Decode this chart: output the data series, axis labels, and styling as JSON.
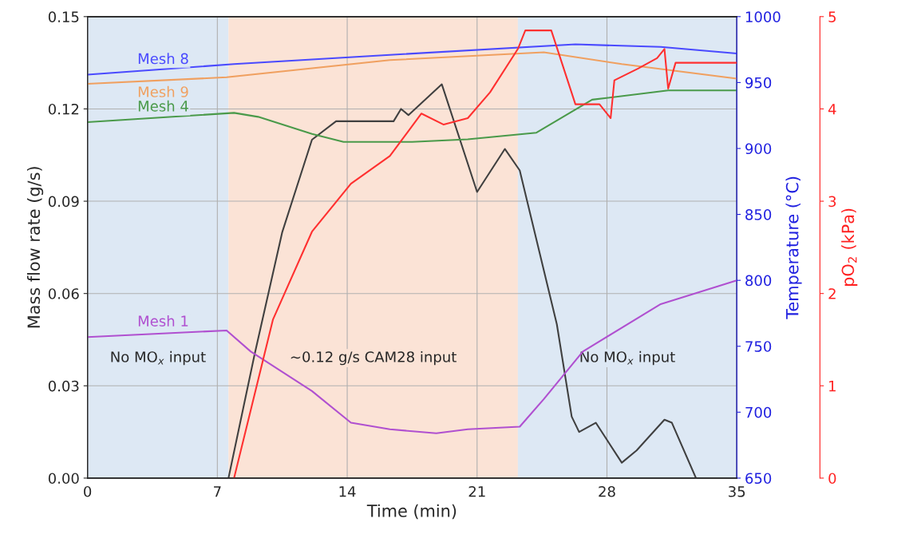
{
  "chart_data": {
    "type": "line",
    "xlabel": "Time (min)",
    "ylabel": "Mass flow rate (g/s)",
    "y2label": "Temperature (°C)",
    "y3label": "pO$_{2}$ (kPa)",
    "xlim": [
      0,
      35
    ],
    "xticks": [
      0,
      7,
      14,
      21,
      28,
      35
    ],
    "ylim": [
      0,
      0.15
    ],
    "yticks": [
      {
        "value": 0,
        "label": "0.00"
      },
      0.03,
      0.06,
      0.09,
      0.12,
      0.15
    ],
    "y2lim": [
      650,
      1000
    ],
    "y2ticks": [
      650,
      700,
      750,
      800,
      850,
      900,
      950,
      1000
    ],
    "y3lim": [
      0,
      5
    ],
    "y3ticks": [
      0,
      1,
      2,
      3,
      4,
      5
    ],
    "grid": true,
    "legend": false,
    "bands": [
      {
        "axis": "x",
        "from": 0,
        "to": 7.6,
        "label": "No MO$_{x}$ input",
        "color": "#dde8f4"
      },
      {
        "axis": "x",
        "from": 7.6,
        "to": 23.2,
        "label": "~0.12 g/s CAM28 input",
        "color": "#fbe3d6"
      },
      {
        "axis": "x",
        "from": 23.2,
        "to": 35,
        "label": "No MO$_{x}$ input",
        "color": "#dde8f4"
      }
    ],
    "series": [
      {
        "name": "Mesh 8",
        "color": "#4a4aff",
        "axis": "y2",
        "x": [
          0,
          7.9,
          16.3,
          26.3,
          30.9,
          35
        ],
        "values": [
          956,
          964,
          971,
          979,
          977,
          972
        ]
      },
      {
        "name": "Mesh 9",
        "color": "#f0a060",
        "axis": "y2",
        "x": [
          0,
          7.5,
          16.3,
          24.6,
          28.8,
          35
        ],
        "values": [
          949,
          954,
          967,
          973,
          964,
          953
        ]
      },
      {
        "name": "Mesh 4",
        "color": "#4a9a4a",
        "axis": "y2",
        "x": [
          0,
          7.9,
          9.2,
          12.1,
          13.8,
          17.5,
          20.5,
          24.2,
          27.2,
          31.3,
          35
        ],
        "values": [
          920,
          927,
          924,
          911,
          905,
          905,
          907,
          912,
          937,
          944,
          944
        ]
      },
      {
        "name": "Mesh 1",
        "color": "#b050d0",
        "axis": "y2",
        "x": [
          0,
          7.5,
          8.8,
          12.1,
          14.2,
          16.3,
          18.8,
          20.5,
          23.3,
          24.6,
          26.7,
          30.9,
          35
        ],
        "values": [
          757,
          762,
          746,
          716,
          692,
          687,
          684,
          687,
          689,
          710,
          746,
          782,
          800
        ]
      },
      {
        "color": "#404040",
        "x": [
          7.6,
          9.0,
          10.5,
          12.1,
          13.4,
          16.5,
          16.9,
          17.3,
          19.1,
          21.0,
          22.5,
          23.3,
          25.3,
          26.1,
          26.5,
          27.4,
          28.8,
          29.6,
          31.1,
          31.5,
          32.8
        ],
        "values": [
          0,
          0.04,
          0.08,
          0.11,
          0.116,
          0.116,
          0.12,
          0.118,
          0.128,
          0.093,
          0.107,
          0.1,
          0.05,
          0.02,
          0.015,
          0.018,
          0.005,
          0.009,
          0.019,
          0.018,
          0
        ]
      },
      {
        "color": "#ff3030",
        "axis": "y3",
        "x": [
          7.9,
          10.0,
          12.1,
          14.2,
          16.3,
          18.0,
          19.2,
          20.5,
          21.7,
          23.2,
          23.6,
          25.0,
          26.3,
          27.6,
          28.2,
          28.4,
          29.7,
          30.7,
          31.1,
          31.3,
          31.7,
          35
        ],
        "values": [
          0,
          1.72,
          2.67,
          3.19,
          3.49,
          3.95,
          3.83,
          3.9,
          4.18,
          4.65,
          4.85,
          4.85,
          4.05,
          4.05,
          3.9,
          4.31,
          4.44,
          4.55,
          4.65,
          4.22,
          4.5,
          4.5
        ]
      }
    ]
  }
}
